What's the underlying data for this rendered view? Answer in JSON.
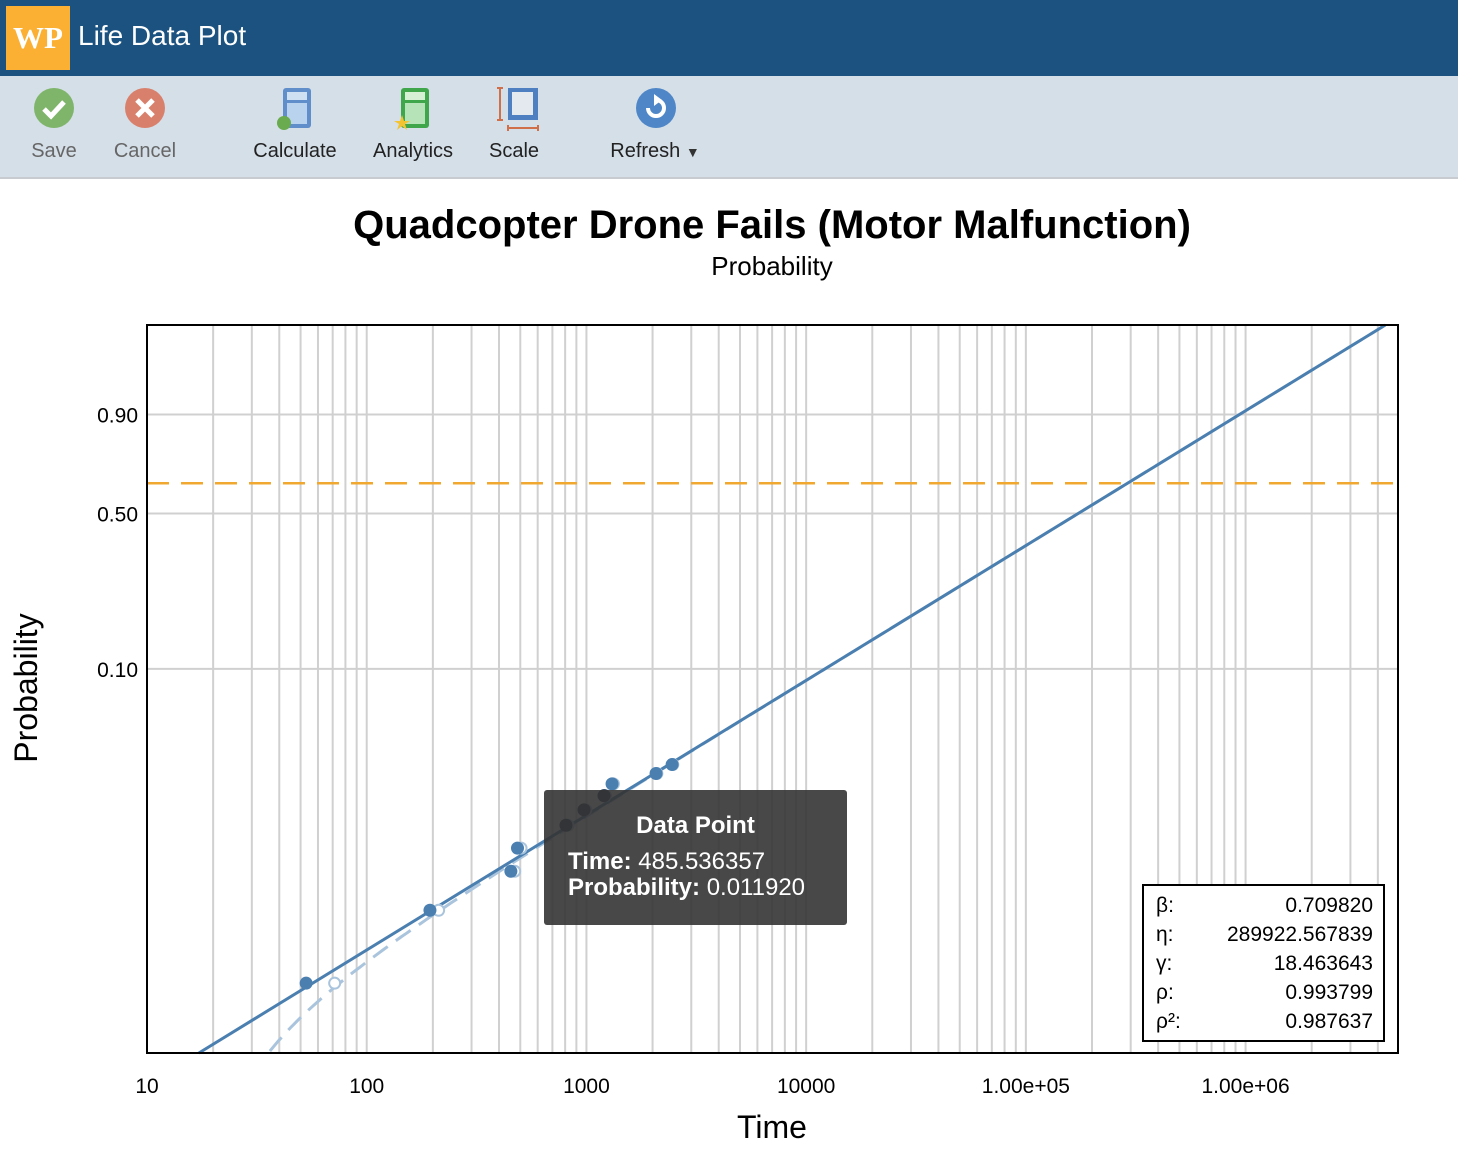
{
  "header": {
    "logo": "WP",
    "title": "Life Data Plot"
  },
  "toolbar": {
    "save": "Save",
    "cancel": "Cancel",
    "calculate": "Calculate",
    "analytics": "Analytics",
    "scale": "Scale",
    "refresh": "Refresh"
  },
  "tooltip": {
    "title": "Data Point",
    "time_label": "Time:",
    "time_value": "485.536357",
    "prob_label": "Probability:",
    "prob_value": "0.011920"
  },
  "legend": [
    {
      "label": "β:",
      "value": "0.709820"
    },
    {
      "label": "η:",
      "value": "289922.567839"
    },
    {
      "label": "γ:",
      "value": "18.463643"
    },
    {
      "label": "ρ:",
      "value": "0.993799"
    },
    {
      "label": "ρ²:",
      "value": "0.987637"
    }
  ],
  "colors": {
    "fit": "#4a7fb0",
    "fit_dashed": "#a9c4dc",
    "eta_line": "#f0a830",
    "grid": "#d0d0d0"
  },
  "chart_data": {
    "type": "scatter",
    "title": "Quadcopter Drone Fails (Motor Malfunction)",
    "subtitle": "Probability",
    "xlabel": "Time",
    "ylabel": "Probability",
    "xscale": "log",
    "yscale": "weibull",
    "xlim": [
      10,
      4940000
    ],
    "ylim": [
      0.001,
      0.9989
    ],
    "x_ticks": [
      10,
      100,
      1000,
      10000,
      100000,
      1000000
    ],
    "x_tick_labels": [
      "10",
      "100",
      "1000",
      "10000",
      "1.00e+05",
      "1.00e+06"
    ],
    "y_ticks": [
      0.9,
      0.5,
      0.1
    ],
    "y_tick_labels": [
      "0.90",
      "0.50",
      "0.10"
    ],
    "grid": true,
    "fit": {
      "beta": 0.70982,
      "eta": 289922.567839,
      "gamma": 18.463643
    },
    "eta_reference_probability": 0.632,
    "points": {
      "time_shifted": [
        53.0,
        194,
        453,
        485.536357,
        807,
        975,
        1202,
        1308,
        2074,
        2454
      ],
      "probability": [
        0.00233,
        0.00563,
        0.00902,
        0.01192,
        0.0157,
        0.0189,
        0.0224,
        0.0258,
        0.0292,
        0.0325
      ]
    },
    "highlighted_index": 3,
    "legend_position": "bottom-right"
  }
}
